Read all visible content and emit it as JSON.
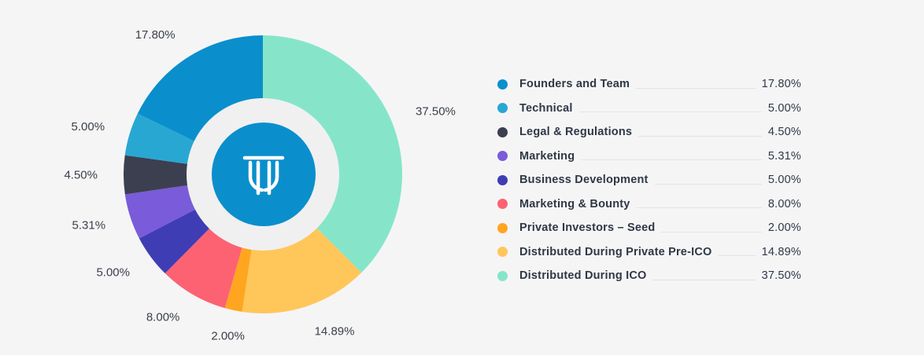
{
  "chart_data": {
    "type": "pie",
    "variant": "donut",
    "title": "",
    "center_icon": "token-logo-icon",
    "slices": [
      {
        "name": "Distributed During ICO",
        "value": 37.5,
        "label": "37.50%",
        "color": "#86e5c9"
      },
      {
        "name": "Distributed During Private Pre-ICO",
        "value": 14.89,
        "label": "14.89%",
        "color": "#ffc65a"
      },
      {
        "name": "Private Investors – Seed",
        "value": 2.0,
        "label": "2.00%",
        "color": "#ffa51f"
      },
      {
        "name": "Marketing & Bounty",
        "value": 8.0,
        "label": "8.00%",
        "color": "#fd6272"
      },
      {
        "name": "Business Development",
        "value": 5.0,
        "label": "5.00%",
        "color": "#3f3db4"
      },
      {
        "name": "Marketing",
        "value": 5.31,
        "label": "5.31%",
        "color": "#7a5bd9"
      },
      {
        "name": "Legal & Regulations",
        "value": 4.5,
        "label": "4.50%",
        "color": "#3b3f4f"
      },
      {
        "name": "Technical",
        "value": 5.0,
        "label": "5.00%",
        "color": "#28a7d3"
      },
      {
        "name": "Founders and Team",
        "value": 17.8,
        "label": "17.80%",
        "color": "#0a8fcc"
      }
    ],
    "legend": [
      {
        "name": "Founders and Team",
        "value": "17.80%",
        "color": "#0a8fcc"
      },
      {
        "name": "Technical",
        "value": "5.00%",
        "color": "#28a7d3"
      },
      {
        "name": "Legal & Regulations",
        "value": "4.50%",
        "color": "#3b3f4f"
      },
      {
        "name": "Marketing",
        "value": "5.31%",
        "color": "#7a5bd9"
      },
      {
        "name": "Business Development",
        "value": "5.00%",
        "color": "#3f3db4"
      },
      {
        "name": "Marketing & Bounty",
        "value": "8.00%",
        "color": "#fd6272"
      },
      {
        "name": "Private Investors – Seed",
        "value": "2.00%",
        "color": "#ffa51f"
      },
      {
        "name": "Distributed During Private Pre-ICO",
        "value": "14.89%",
        "color": "#ffc65a"
      },
      {
        "name": "Distributed During ICO",
        "value": "37.50%",
        "color": "#86e5c9"
      }
    ],
    "legend_placement": "right",
    "inner_fill": "#f0f0f1",
    "logo_color": "#0a8fcc"
  }
}
